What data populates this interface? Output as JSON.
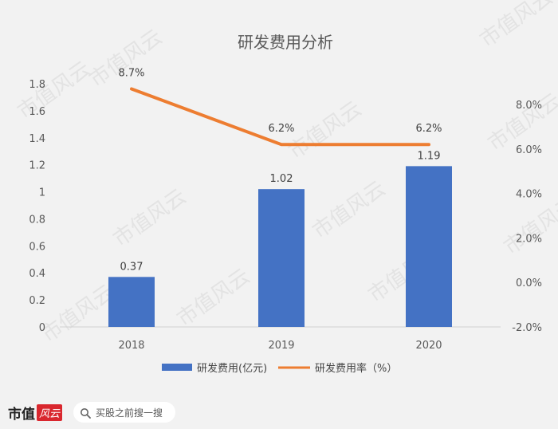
{
  "chart_data": {
    "title": "研发费用分析",
    "categories": [
      "2018",
      "2019",
      "2020"
    ],
    "series": [
      {
        "name": "研发费用(亿元)",
        "type": "bar",
        "axis": "left",
        "color": "#4472c4",
        "values": [
          0.37,
          1.02,
          1.19
        ],
        "labels": [
          "0.37",
          "1.02",
          "1.19"
        ]
      },
      {
        "name": "研发费用率（%）",
        "type": "line",
        "axis": "right",
        "color": "#ed7d31",
        "values": [
          8.7,
          6.2,
          6.2
        ],
        "labels": [
          "8.7%",
          "6.2%",
          "6.2%"
        ]
      }
    ],
    "y_left": {
      "min": 0,
      "max": 1.8,
      "ticks": [
        {
          "v": 0,
          "t": "0"
        },
        {
          "v": 0.2,
          "t": "0.2"
        },
        {
          "v": 0.4,
          "t": "0.4"
        },
        {
          "v": 0.6,
          "t": "0.6"
        },
        {
          "v": 0.8,
          "t": "0.8"
        },
        {
          "v": 1.0,
          "t": "1"
        },
        {
          "v": 1.2,
          "t": "1.2"
        },
        {
          "v": 1.4,
          "t": "1.4"
        },
        {
          "v": 1.6,
          "t": "1.6"
        },
        {
          "v": 1.8,
          "t": "1.8"
        }
      ]
    },
    "y_right": {
      "min": -2,
      "max": 8,
      "ticks": [
        {
          "v": -2,
          "t": "-2.0%"
        },
        {
          "v": 0,
          "t": "0.0%"
        },
        {
          "v": 2,
          "t": "2.0%"
        },
        {
          "v": 4,
          "t": "4.0%"
        },
        {
          "v": 6,
          "t": "6.0%"
        },
        {
          "v": 8,
          "t": "8.0%"
        }
      ]
    },
    "legend_position": "bottom",
    "grid": false
  },
  "watermark": "市值风云",
  "footer": {
    "brand": "市值",
    "brand_seal": "风云",
    "search_text": "买股之前搜一搜",
    "search_icon": "search-icon"
  }
}
